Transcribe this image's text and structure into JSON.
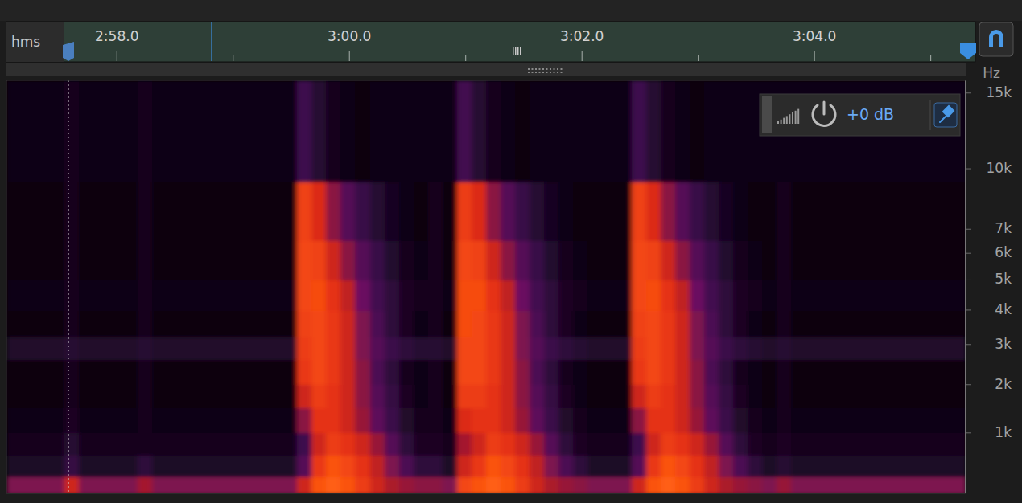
{
  "chart_data": {
    "type": "spectrogram",
    "xlabel": "hms",
    "ylabel": "Hz",
    "annotations": [
      {
        "text": "+0 dB",
        "value": 0
      }
    ],
    "xlim": [
      177.05,
      185.3
    ],
    "xticks": [
      {
        "value": 178,
        "label": "2:58.0"
      },
      {
        "value": 180,
        "label": "3:00.0"
      },
      {
        "value": 182,
        "label": "3:02.0"
      },
      {
        "value": 184,
        "label": "3:04.0"
      }
    ],
    "ylim": [
      0,
      16000
    ],
    "yticks": [
      {
        "value": 1000,
        "label": "1k"
      },
      {
        "value": 2000,
        "label": "2k"
      },
      {
        "value": 3000,
        "label": "3k"
      },
      {
        "value": 4000,
        "label": "4k"
      },
      {
        "value": 5000,
        "label": "5k"
      },
      {
        "value": 6000,
        "label": "6k"
      },
      {
        "value": 7000,
        "label": "7k"
      },
      {
        "value": 10000,
        "label": "10k"
      },
      {
        "value": 15000,
        "label": "15k"
      }
    ],
    "color_range": [
      -100,
      -30
    ],
    "x": [
      177.05,
      177.175,
      177.3,
      177.425,
      177.55,
      177.675,
      177.8,
      177.925,
      178.05,
      178.175,
      178.3,
      178.425,
      178.55,
      178.675,
      178.8,
      178.925,
      179.05,
      179.175,
      179.3,
      179.425,
      179.55,
      179.675,
      179.8,
      179.925,
      180.05,
      180.175,
      180.3,
      180.425,
      180.55,
      180.675,
      180.8,
      180.925,
      181.05,
      181.175,
      181.3,
      181.425,
      181.55,
      181.675,
      181.8,
      181.925,
      182.05,
      182.175,
      182.3,
      182.425,
      182.55,
      182.675,
      182.8,
      182.925,
      183.05,
      183.175,
      183.3,
      183.425,
      183.55,
      183.675,
      183.8,
      183.925,
      184.05,
      184.175,
      184.3,
      184.425,
      184.55,
      184.675,
      184.8,
      184.925,
      185.05,
      185.175,
      185.3
    ],
    "y": [
      0,
      250,
      600,
      1000,
      1500,
      2000,
      2600,
      3200,
      4000,
      5000,
      6500,
      9300,
      16000
    ],
    "cells": [
      [
        -62,
        -62,
        -62,
        -62,
        -50,
        -62,
        -62,
        -62,
        -62,
        -56,
        -62,
        -62,
        -62,
        -62,
        -62,
        -62,
        -62,
        -62,
        -62,
        -62,
        -50,
        -40,
        -38,
        -40,
        -44,
        -50,
        -55,
        -58,
        -60,
        -60,
        -62,
        -42,
        -40,
        -38,
        -40,
        -44,
        -50,
        -55,
        -58,
        -60,
        -62,
        -62,
        -62,
        -50,
        -40,
        -38,
        -40,
        -44,
        -50,
        -55,
        -58,
        -60,
        -62,
        -58,
        -62,
        -62,
        -62,
        -62,
        -62,
        -62,
        -62,
        -62,
        -62,
        -62,
        -62,
        -62
      ],
      [
        -85,
        -85,
        -85,
        -85,
        -78,
        -85,
        -85,
        -85,
        -85,
        -80,
        -85,
        -85,
        -85,
        -85,
        -85,
        -85,
        -85,
        -85,
        -85,
        -85,
        -70,
        -45,
        -40,
        -42,
        -46,
        -52,
        -62,
        -72,
        -80,
        -80,
        -85,
        -50,
        -45,
        -40,
        -42,
        -46,
        -52,
        -62,
        -72,
        -80,
        -85,
        -85,
        -85,
        -70,
        -45,
        -40,
        -42,
        -46,
        -52,
        -62,
        -72,
        -80,
        -85,
        -82,
        -85,
        -85,
        -85,
        -85,
        -85,
        -85,
        -85,
        -85,
        -85,
        -85,
        -85,
        -85
      ],
      [
        -88,
        -88,
        -88,
        -88,
        -82,
        -88,
        -88,
        -88,
        -88,
        -89,
        -88,
        -88,
        -88,
        -88,
        -88,
        -88,
        -88,
        -88,
        -88,
        -88,
        -75,
        -50,
        -44,
        -46,
        -50,
        -58,
        -70,
        -80,
        -86,
        -86,
        -88,
        -56,
        -50,
        -44,
        -46,
        -50,
        -58,
        -70,
        -80,
        -86,
        -88,
        -88,
        -88,
        -75,
        -50,
        -44,
        -46,
        -50,
        -58,
        -70,
        -80,
        -86,
        -88,
        -86,
        -88,
        -88,
        -88,
        -88,
        -88,
        -88,
        -88,
        -88,
        -88,
        -88,
        -88,
        -88
      ],
      [
        -93,
        -93,
        -93,
        -93,
        -86,
        -93,
        -93,
        -93,
        -93,
        -89,
        -93,
        -93,
        -93,
        -93,
        -93,
        -93,
        -93,
        -93,
        -93,
        -93,
        -60,
        -46,
        -46,
        -50,
        -58,
        -68,
        -76,
        -84,
        -90,
        -90,
        -93,
        -48,
        -46,
        -46,
        -50,
        -58,
        -68,
        -76,
        -84,
        -90,
        -93,
        -93,
        -93,
        -60,
        -46,
        -46,
        -50,
        -58,
        -68,
        -76,
        -84,
        -90,
        -93,
        -90,
        -93,
        -93,
        -93,
        -93,
        -93,
        -93,
        -93,
        -93,
        -93,
        -93,
        -93,
        -93
      ],
      [
        -94,
        -94,
        -94,
        -94,
        -88,
        -94,
        -94,
        -94,
        -94,
        -89,
        -94,
        -94,
        -94,
        -94,
        -94,
        -94,
        -94,
        -94,
        -94,
        -94,
        -50,
        -44,
        -46,
        -50,
        -60,
        -70,
        -78,
        -86,
        -92,
        -90,
        -94,
        -44,
        -44,
        -46,
        -50,
        -60,
        -70,
        -78,
        -86,
        -92,
        -94,
        -94,
        -94,
        -50,
        -44,
        -46,
        -50,
        -60,
        -70,
        -78,
        -86,
        -92,
        -94,
        -90,
        -94,
        -94,
        -94,
        -94,
        -94,
        -94,
        -94,
        -94,
        -94,
        -94,
        -94,
        -94
      ],
      [
        -95,
        -95,
        -95,
        -95,
        -88,
        -95,
        -95,
        -95,
        -95,
        -89,
        -95,
        -95,
        -95,
        -95,
        -95,
        -95,
        -95,
        -95,
        -95,
        -95,
        -45,
        -42,
        -45,
        -50,
        -60,
        -72,
        -80,
        -88,
        -93,
        -90,
        -95,
        -42,
        -42,
        -45,
        -50,
        -60,
        -72,
        -80,
        -88,
        -93,
        -95,
        -95,
        -95,
        -45,
        -42,
        -45,
        -50,
        -60,
        -72,
        -80,
        -88,
        -93,
        -95,
        -90,
        -95,
        -95,
        -95,
        -95,
        -95,
        -95,
        -95,
        -95,
        -95,
        -95,
        -95,
        -95
      ],
      [
        -84,
        -84,
        -84,
        -84,
        -82,
        -84,
        -84,
        -84,
        -84,
        -82,
        -84,
        -84,
        -84,
        -84,
        -84,
        -84,
        -84,
        -84,
        -84,
        -84,
        -44,
        -42,
        -45,
        -50,
        -62,
        -70,
        -76,
        -80,
        -82,
        -82,
        -84,
        -42,
        -42,
        -45,
        -50,
        -62,
        -70,
        -76,
        -80,
        -82,
        -84,
        -84,
        -84,
        -44,
        -42,
        -45,
        -50,
        -62,
        -70,
        -76,
        -80,
        -82,
        -84,
        -82,
        -84,
        -84,
        -84,
        -84,
        -84,
        -84,
        -84,
        -84,
        -84,
        -84,
        -84,
        -84
      ],
      [
        -95,
        -95,
        -95,
        -95,
        -88,
        -95,
        -95,
        -95,
        -95,
        -89,
        -95,
        -95,
        -95,
        -95,
        -95,
        -95,
        -95,
        -95,
        -95,
        -95,
        -43,
        -42,
        -45,
        -50,
        -62,
        -72,
        -80,
        -86,
        -91,
        -90,
        -95,
        -41,
        -42,
        -45,
        -50,
        -62,
        -72,
        -80,
        -86,
        -91,
        -95,
        -95,
        -95,
        -43,
        -42,
        -45,
        -50,
        -62,
        -72,
        -80,
        -86,
        -91,
        -95,
        -90,
        -95,
        -95,
        -95,
        -95,
        -95,
        -95,
        -95,
        -95,
        -95,
        -95,
        -95,
        -95
      ],
      [
        -92,
        -92,
        -92,
        -92,
        -88,
        -92,
        -92,
        -92,
        -92,
        -89,
        -92,
        -92,
        -92,
        -92,
        -92,
        -92,
        -92,
        -92,
        -92,
        -92,
        -42,
        -41,
        -46,
        -52,
        -65,
        -74,
        -80,
        -86,
        -90,
        -90,
        -92,
        -41,
        -41,
        -46,
        -52,
        -65,
        -74,
        -80,
        -86,
        -90,
        -92,
        -92,
        -92,
        -42,
        -41,
        -46,
        -52,
        -65,
        -74,
        -80,
        -86,
        -90,
        -92,
        -90,
        -92,
        -92,
        -92,
        -92,
        -92,
        -92,
        -92,
        -92,
        -92,
        -92,
        -92,
        -92
      ],
      [
        -95,
        -95,
        -95,
        -95,
        -88,
        -95,
        -95,
        -95,
        -95,
        -89,
        -95,
        -95,
        -95,
        -95,
        -95,
        -95,
        -95,
        -95,
        -95,
        -95,
        -42,
        -43,
        -50,
        -60,
        -70,
        -77,
        -83,
        -88,
        -92,
        -90,
        -95,
        -42,
        -43,
        -50,
        -60,
        -70,
        -77,
        -83,
        -88,
        -92,
        -95,
        -95,
        -95,
        -42,
        -43,
        -50,
        -60,
        -70,
        -77,
        -83,
        -88,
        -92,
        -95,
        -90,
        -95,
        -95,
        -95,
        -95,
        -95,
        -95,
        -95,
        -95,
        -95,
        -95,
        -95,
        -95
      ],
      [
        -95,
        -95,
        -95,
        -95,
        -88,
        -95,
        -95,
        -95,
        -95,
        -89,
        -95,
        -95,
        -95,
        -95,
        -95,
        -95,
        -95,
        -95,
        -95,
        -95,
        -43,
        -48,
        -60,
        -70,
        -77,
        -82,
        -87,
        -92,
        -94,
        -90,
        -95,
        -44,
        -48,
        -60,
        -70,
        -77,
        -82,
        -87,
        -92,
        -94,
        -95,
        -95,
        -95,
        -43,
        -48,
        -60,
        -70,
        -77,
        -82,
        -87,
        -92,
        -94,
        -95,
        -90,
        -95,
        -95,
        -95,
        -95,
        -95,
        -95,
        -95,
        -95,
        -95,
        -95,
        -95,
        -95
      ],
      [
        -93,
        -93,
        -93,
        -93,
        -88,
        -93,
        -93,
        -93,
        -93,
        -89,
        -93,
        -93,
        -93,
        -93,
        -93,
        -93,
        -93,
        -93,
        -93,
        -93,
        -75,
        -82,
        -88,
        -92,
        -94,
        -93,
        -93,
        -93,
        -93,
        -93,
        -93,
        -74,
        -82,
        -88,
        -92,
        -94,
        -93,
        -93,
        -93,
        -93,
        -93,
        -93,
        -93,
        -75,
        -82,
        -88,
        -92,
        -94,
        -93,
        -93,
        -93,
        -93,
        -93,
        -93,
        -93,
        -93,
        -93,
        -93,
        -93,
        -93,
        -93,
        -93,
        -93,
        -93,
        -93,
        -93
      ]
    ]
  }
}
